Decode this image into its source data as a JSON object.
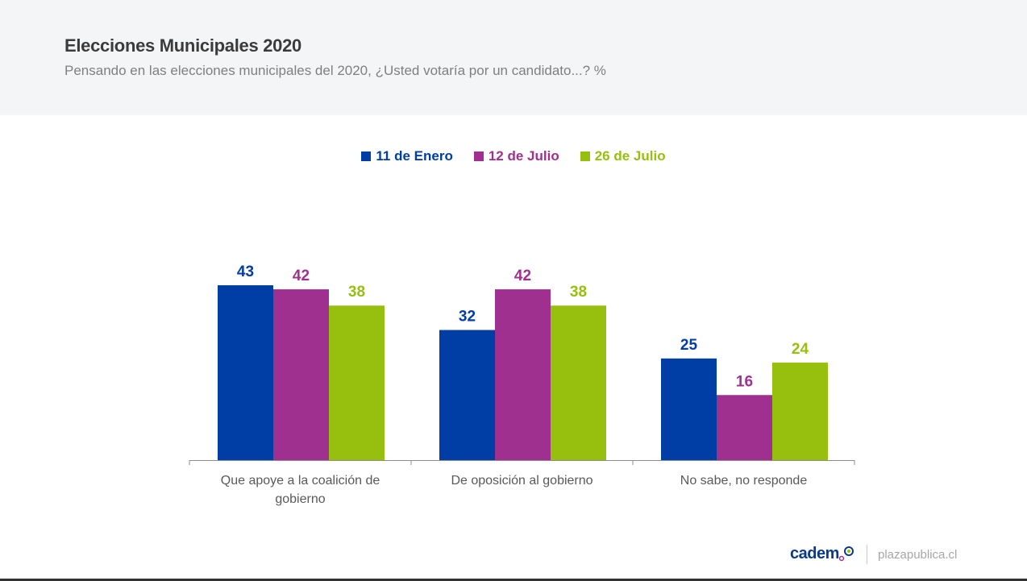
{
  "header": {
    "title": "Elecciones Municipales 2020",
    "subtitle": "Pensando en las elecciones municipales del 2020, ¿Usted votaría por un candidato...? %"
  },
  "footer": {
    "logo": "cadem",
    "site": "plazapublica.cl"
  },
  "chart_data": {
    "type": "bar",
    "title": "Elecciones Municipales 2020",
    "subtitle": "Pensando en las elecciones municipales del 2020, ¿Usted votaría por un candidato...? %",
    "xlabel": "",
    "ylabel": "",
    "ylim": [
      0,
      43
    ],
    "grid": false,
    "legend_position": "top-center",
    "categories": [
      "Que apoye a la coalición de gobierno",
      "De oposición al gobierno",
      "No sabe, no responde"
    ],
    "series": [
      {
        "name": "11 de Enero",
        "color": "#003da5",
        "values": [
          43,
          32,
          25
        ]
      },
      {
        "name": "12 de Julio",
        "color": "#a0308f",
        "values": [
          42,
          42,
          16
        ]
      },
      {
        "name": "26 de Julio",
        "color": "#97bf0d",
        "values": [
          38,
          38,
          24
        ]
      }
    ]
  }
}
